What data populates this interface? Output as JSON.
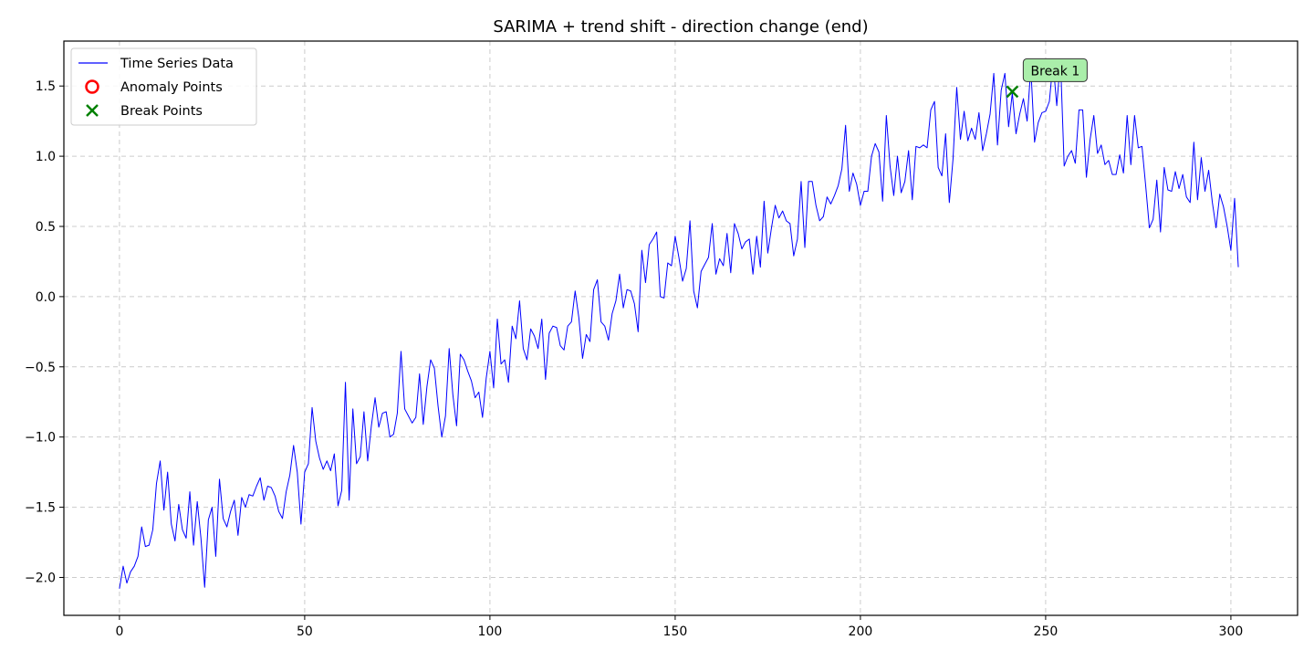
{
  "chart_data": {
    "type": "line",
    "title": "SARIMA + trend shift - direction change (end)",
    "xlabel": "",
    "ylabel": "",
    "xlim": [
      -15,
      318
    ],
    "ylim": [
      -2.27,
      1.82
    ],
    "grid": true,
    "legend_position": "top-left",
    "x_ticks": [
      0,
      50,
      100,
      150,
      200,
      250,
      300
    ],
    "x_tick_labels": [
      "0",
      "50",
      "100",
      "150",
      "200",
      "250",
      "300"
    ],
    "y_ticks": [
      -2.0,
      -1.5,
      -1.0,
      -0.5,
      0.0,
      0.5,
      1.0,
      1.5
    ],
    "y_tick_labels": [
      "−2.0",
      "−1.5",
      "−1.0",
      "−0.5",
      "0.0",
      "0.5",
      "1.0",
      "1.5"
    ],
    "legend": [
      {
        "label": "Time Series Data",
        "kind": "line",
        "color": "#0000ff"
      },
      {
        "label": "Anomaly Points",
        "kind": "circle",
        "color": "#ff0000"
      },
      {
        "label": "Break Points",
        "kind": "x",
        "color": "#008000"
      }
    ],
    "series": [
      {
        "name": "Time Series Data",
        "color": "#0000ff",
        "x_start": 0,
        "values": [
          -2.08,
          -1.92,
          -2.04,
          -1.96,
          -1.92,
          -1.85,
          -1.64,
          -1.78,
          -1.77,
          -1.66,
          -1.33,
          -1.17,
          -1.52,
          -1.25,
          -1.62,
          -1.74,
          -1.48,
          -1.66,
          -1.72,
          -1.39,
          -1.77,
          -1.46,
          -1.72,
          -2.07,
          -1.59,
          -1.5,
          -1.85,
          -1.3,
          -1.58,
          -1.64,
          -1.53,
          -1.45,
          -1.7,
          -1.43,
          -1.5,
          -1.41,
          -1.42,
          -1.35,
          -1.29,
          -1.45,
          -1.35,
          -1.36,
          -1.42,
          -1.53,
          -1.58,
          -1.39,
          -1.27,
          -1.06,
          -1.25,
          -1.62,
          -1.25,
          -1.19,
          -0.79,
          -1.03,
          -1.15,
          -1.23,
          -1.17,
          -1.24,
          -1.12,
          -1.49,
          -1.38,
          -0.61,
          -1.45,
          -0.8,
          -1.19,
          -1.14,
          -0.82,
          -1.17,
          -0.92,
          -0.72,
          -0.93,
          -0.83,
          -0.82,
          -1.0,
          -0.98,
          -0.83,
          -0.39,
          -0.8,
          -0.85,
          -0.9,
          -0.86,
          -0.55,
          -0.91,
          -0.64,
          -0.45,
          -0.51,
          -0.78,
          -1.0,
          -0.85,
          -0.37,
          -0.7,
          -0.92,
          -0.41,
          -0.45,
          -0.53,
          -0.6,
          -0.72,
          -0.68,
          -0.86,
          -0.58,
          -0.39,
          -0.65,
          -0.16,
          -0.48,
          -0.45,
          -0.61,
          -0.21,
          -0.3,
          -0.03,
          -0.37,
          -0.45,
          -0.23,
          -0.28,
          -0.37,
          -0.16,
          -0.59,
          -0.26,
          -0.21,
          -0.22,
          -0.35,
          -0.38,
          -0.21,
          -0.18,
          0.04,
          -0.15,
          -0.44,
          -0.27,
          -0.32,
          0.05,
          0.12,
          -0.18,
          -0.21,
          -0.31,
          -0.12,
          -0.03,
          0.16,
          -0.08,
          0.05,
          0.04,
          -0.05,
          -0.25,
          0.33,
          0.1,
          0.37,
          0.41,
          0.46,
          0.0,
          -0.01,
          0.24,
          0.22,
          0.43,
          0.28,
          0.11,
          0.2,
          0.54,
          0.04,
          -0.08,
          0.18,
          0.23,
          0.28,
          0.52,
          0.16,
          0.27,
          0.22,
          0.45,
          0.17,
          0.52,
          0.45,
          0.34,
          0.39,
          0.41,
          0.16,
          0.43,
          0.21,
          0.68,
          0.31,
          0.49,
          0.65,
          0.56,
          0.61,
          0.54,
          0.52,
          0.29,
          0.41,
          0.82,
          0.35,
          0.82,
          0.82,
          0.65,
          0.54,
          0.57,
          0.71,
          0.66,
          0.72,
          0.79,
          0.91,
          1.22,
          0.75,
          0.88,
          0.8,
          0.65,
          0.75,
          0.75,
          1.0,
          1.09,
          1.03,
          0.68,
          1.29,
          0.93,
          0.72,
          1.0,
          0.74,
          0.82,
          1.04,
          0.69,
          1.07,
          1.06,
          1.08,
          1.06,
          1.33,
          1.39,
          0.92,
          0.86,
          1.16,
          0.67,
          0.98,
          1.49,
          1.12,
          1.32,
          1.11,
          1.2,
          1.12,
          1.31,
          1.04,
          1.16,
          1.3,
          1.59,
          1.08,
          1.47,
          1.59,
          1.21,
          1.45,
          1.16,
          1.3,
          1.41,
          1.25,
          1.63,
          1.1,
          1.24,
          1.31,
          1.32,
          1.39,
          1.67,
          1.36,
          1.69,
          0.93,
          1.0,
          1.04,
          0.95,
          1.33,
          1.33,
          0.85,
          1.12,
          1.29,
          1.02,
          1.08,
          0.94,
          0.97,
          0.87,
          0.87,
          1.01,
          0.88,
          1.29,
          0.94,
          1.29,
          1.06,
          1.07,
          0.79,
          0.49,
          0.55,
          0.83,
          0.46,
          0.92,
          0.76,
          0.75,
          0.89,
          0.77,
          0.87,
          0.71,
          0.67,
          1.1,
          0.69,
          0.99,
          0.75,
          0.9,
          0.67,
          0.49,
          0.73,
          0.64,
          0.5,
          0.33,
          0.7,
          0.21
        ]
      }
    ],
    "anomaly_points": [],
    "break_points": [
      {
        "x": 241,
        "y": 1.46,
        "label": "Break 1",
        "color": "#008000"
      }
    ],
    "annotation_box_color": "#aaeeaa"
  }
}
